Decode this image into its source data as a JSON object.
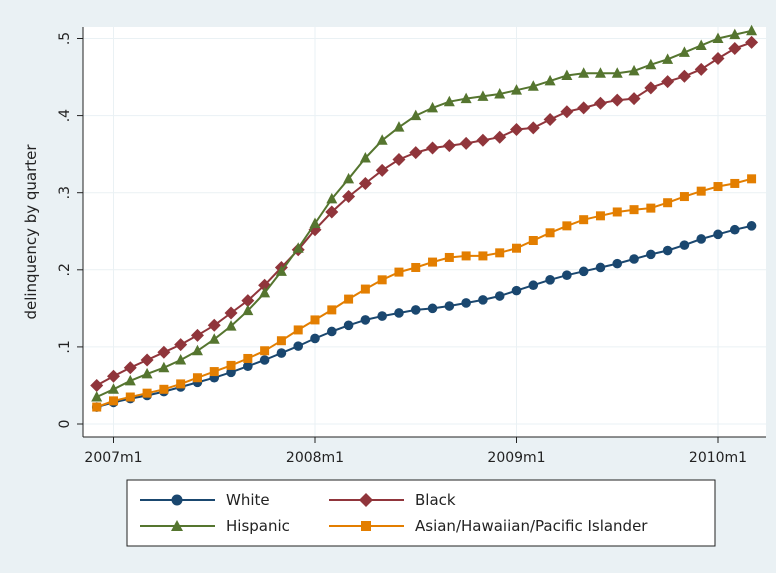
{
  "chart_data": {
    "type": "line",
    "title": "",
    "xlabel": "",
    "ylabel": "delinquency by quarter",
    "ylim": [
      0,
      0.5
    ],
    "y_ticks": [
      0,
      0.1,
      0.2,
      0.3,
      0.4,
      0.5
    ],
    "y_tick_labels": [
      "0",
      ".1",
      ".2",
      ".3",
      ".4",
      ".5"
    ],
    "x_ticks": [
      0,
      12,
      24,
      36
    ],
    "x_tick_labels": [
      "2007m1",
      "2008m1",
      "2009m1",
      "2010m1"
    ],
    "x_unit": "months since 2007m1",
    "x": [
      -1,
      0,
      1,
      2,
      3,
      4,
      5,
      6,
      7,
      8,
      9,
      10,
      11,
      12,
      13,
      14,
      15,
      16,
      17,
      18,
      19,
      20,
      21,
      22,
      23,
      24,
      25,
      26,
      27,
      28,
      29,
      30,
      31,
      32,
      33,
      34,
      35,
      36,
      37,
      38
    ],
    "grid": true,
    "legend_position": "bottom",
    "series": [
      {
        "name": "White",
        "color": "#1a476f",
        "marker": "circle",
        "values": [
          0.022,
          0.028,
          0.033,
          0.037,
          0.042,
          0.048,
          0.054,
          0.06,
          0.067,
          0.075,
          0.083,
          0.092,
          0.101,
          0.111,
          0.12,
          0.128,
          0.135,
          0.14,
          0.144,
          0.148,
          0.15,
          0.153,
          0.157,
          0.161,
          0.166,
          0.173,
          0.18,
          0.187,
          0.193,
          0.198,
          0.203,
          0.208,
          0.214,
          0.22,
          0.225,
          0.232,
          0.24,
          0.246,
          0.252,
          0.257
        ]
      },
      {
        "name": "Black",
        "color": "#90353b",
        "marker": "diamond",
        "values": [
          0.05,
          0.062,
          0.073,
          0.083,
          0.093,
          0.103,
          0.115,
          0.128,
          0.144,
          0.16,
          0.18,
          0.203,
          0.226,
          0.252,
          0.275,
          0.295,
          0.312,
          0.329,
          0.343,
          0.352,
          0.358,
          0.361,
          0.364,
          0.368,
          0.372,
          0.382,
          0.384,
          0.395,
          0.405,
          0.41,
          0.416,
          0.42,
          0.422,
          0.436,
          0.444,
          0.451,
          0.46,
          0.474,
          0.487,
          0.495
        ]
      },
      {
        "name": "Hispanic",
        "color": "#55752f",
        "marker": "triangle",
        "values": [
          0.035,
          0.045,
          0.056,
          0.065,
          0.073,
          0.083,
          0.095,
          0.11,
          0.127,
          0.147,
          0.17,
          0.198,
          0.228,
          0.26,
          0.292,
          0.318,
          0.345,
          0.368,
          0.385,
          0.4,
          0.41,
          0.418,
          0.422,
          0.425,
          0.428,
          0.433,
          0.438,
          0.445,
          0.452,
          0.455,
          0.455,
          0.455,
          0.458,
          0.466,
          0.473,
          0.482,
          0.491,
          0.5,
          0.505,
          0.51
        ]
      },
      {
        "name": "Asian/Hawaiian/Pacific Islander",
        "color": "#e37e00",
        "marker": "square",
        "values": [
          0.022,
          0.03,
          0.035,
          0.04,
          0.045,
          0.052,
          0.06,
          0.068,
          0.076,
          0.085,
          0.095,
          0.108,
          0.122,
          0.135,
          0.148,
          0.162,
          0.175,
          0.187,
          0.197,
          0.203,
          0.21,
          0.216,
          0.218,
          0.218,
          0.222,
          0.228,
          0.238,
          0.248,
          0.257,
          0.265,
          0.27,
          0.275,
          0.278,
          0.28,
          0.287,
          0.295,
          0.302,
          0.308,
          0.312,
          0.318
        ]
      }
    ]
  },
  "legend": {
    "items": [
      {
        "label": "White"
      },
      {
        "label": "Black"
      },
      {
        "label": "Hispanic"
      },
      {
        "label": "Asian/Hawaiian/Pacific Islander"
      }
    ]
  }
}
